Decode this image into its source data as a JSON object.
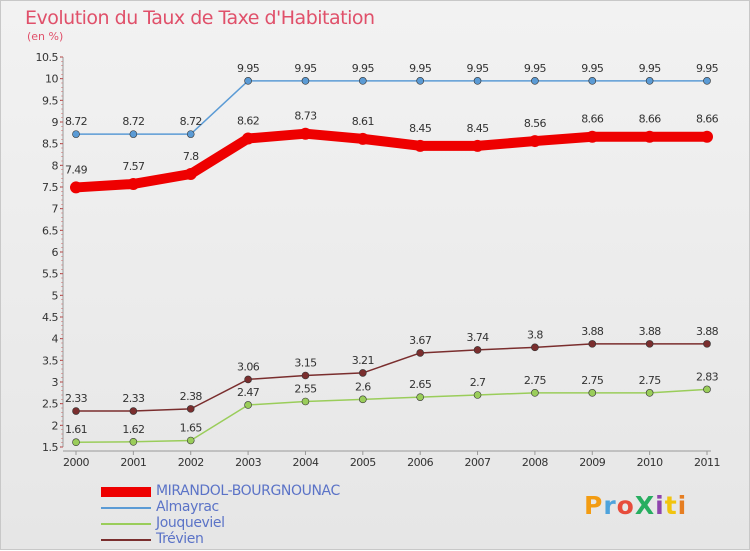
{
  "chart_data": {
    "type": "line",
    "title": "Evolution du Taux de Taxe d'Habitation",
    "subtitle": "(en %)",
    "x": [
      "2000",
      "2001",
      "2002",
      "2003",
      "2004",
      "2005",
      "2006",
      "2007",
      "2008",
      "2009",
      "2010",
      "2011"
    ],
    "ylim": [
      1.5,
      10.5
    ],
    "yticks": [
      "1.5",
      "2",
      "2.5",
      "3",
      "3.5",
      "4",
      "4.5",
      "5",
      "5.5",
      "6",
      "6.5",
      "7",
      "7.5",
      "8",
      "8.5",
      "9",
      "9.5",
      "10",
      "10.5"
    ],
    "grid": false,
    "legend_placement": "bottom-left",
    "series": [
      {
        "name": "MIRANDOL-BOURGNOUNAC",
        "color": "#ee0000",
        "values": [
          7.49,
          7.57,
          7.8,
          8.62,
          8.73,
          8.61,
          8.45,
          8.45,
          8.56,
          8.66,
          8.66,
          8.66
        ],
        "labels": [
          "7.49",
          "7.57",
          "7.8",
          "8.62",
          "8.73",
          "8.61",
          "8.45",
          "8.45",
          "8.56",
          "8.66",
          "8.66",
          "8.66"
        ]
      },
      {
        "name": "Almayrac",
        "color": "#5b9bd5",
        "values": [
          8.72,
          8.72,
          8.72,
          9.95,
          9.95,
          9.95,
          9.95,
          9.95,
          9.95,
          9.95,
          9.95,
          9.95
        ],
        "labels": [
          "8.72",
          "8.72",
          "8.72",
          "9.95",
          "9.95",
          "9.95",
          "9.95",
          "9.95",
          "9.95",
          "9.95",
          "9.95",
          "9.95"
        ]
      },
      {
        "name": "Jouqueviel",
        "color": "#9acd5a",
        "values": [
          1.61,
          1.62,
          1.65,
          2.47,
          2.55,
          2.6,
          2.65,
          2.7,
          2.75,
          2.75,
          2.75,
          2.83
        ],
        "labels": [
          "1.61",
          "1.62",
          "1.65",
          "2.47",
          "2.55",
          "2.6",
          "2.65",
          "2.7",
          "2.75",
          "2.75",
          "2.75",
          "2.83"
        ]
      },
      {
        "name": "Trévien",
        "color": "#7a2e2e",
        "values": [
          2.33,
          2.33,
          2.38,
          3.06,
          3.15,
          3.21,
          3.67,
          3.74,
          3.8,
          3.88,
          3.88,
          3.88
        ],
        "labels": [
          "2.33",
          "2.33",
          "2.38",
          "3.06",
          "3.15",
          "3.21",
          "3.67",
          "3.74",
          "3.8",
          "3.88",
          "3.88",
          "3.88"
        ]
      }
    ]
  },
  "logo": {
    "text": "ProXiti",
    "colors": [
      "#f39c12",
      "#4ea3dc",
      "#e74c3c",
      "#27ae60",
      "#8e44ad",
      "#f1c40f",
      "#e67e22"
    ]
  }
}
